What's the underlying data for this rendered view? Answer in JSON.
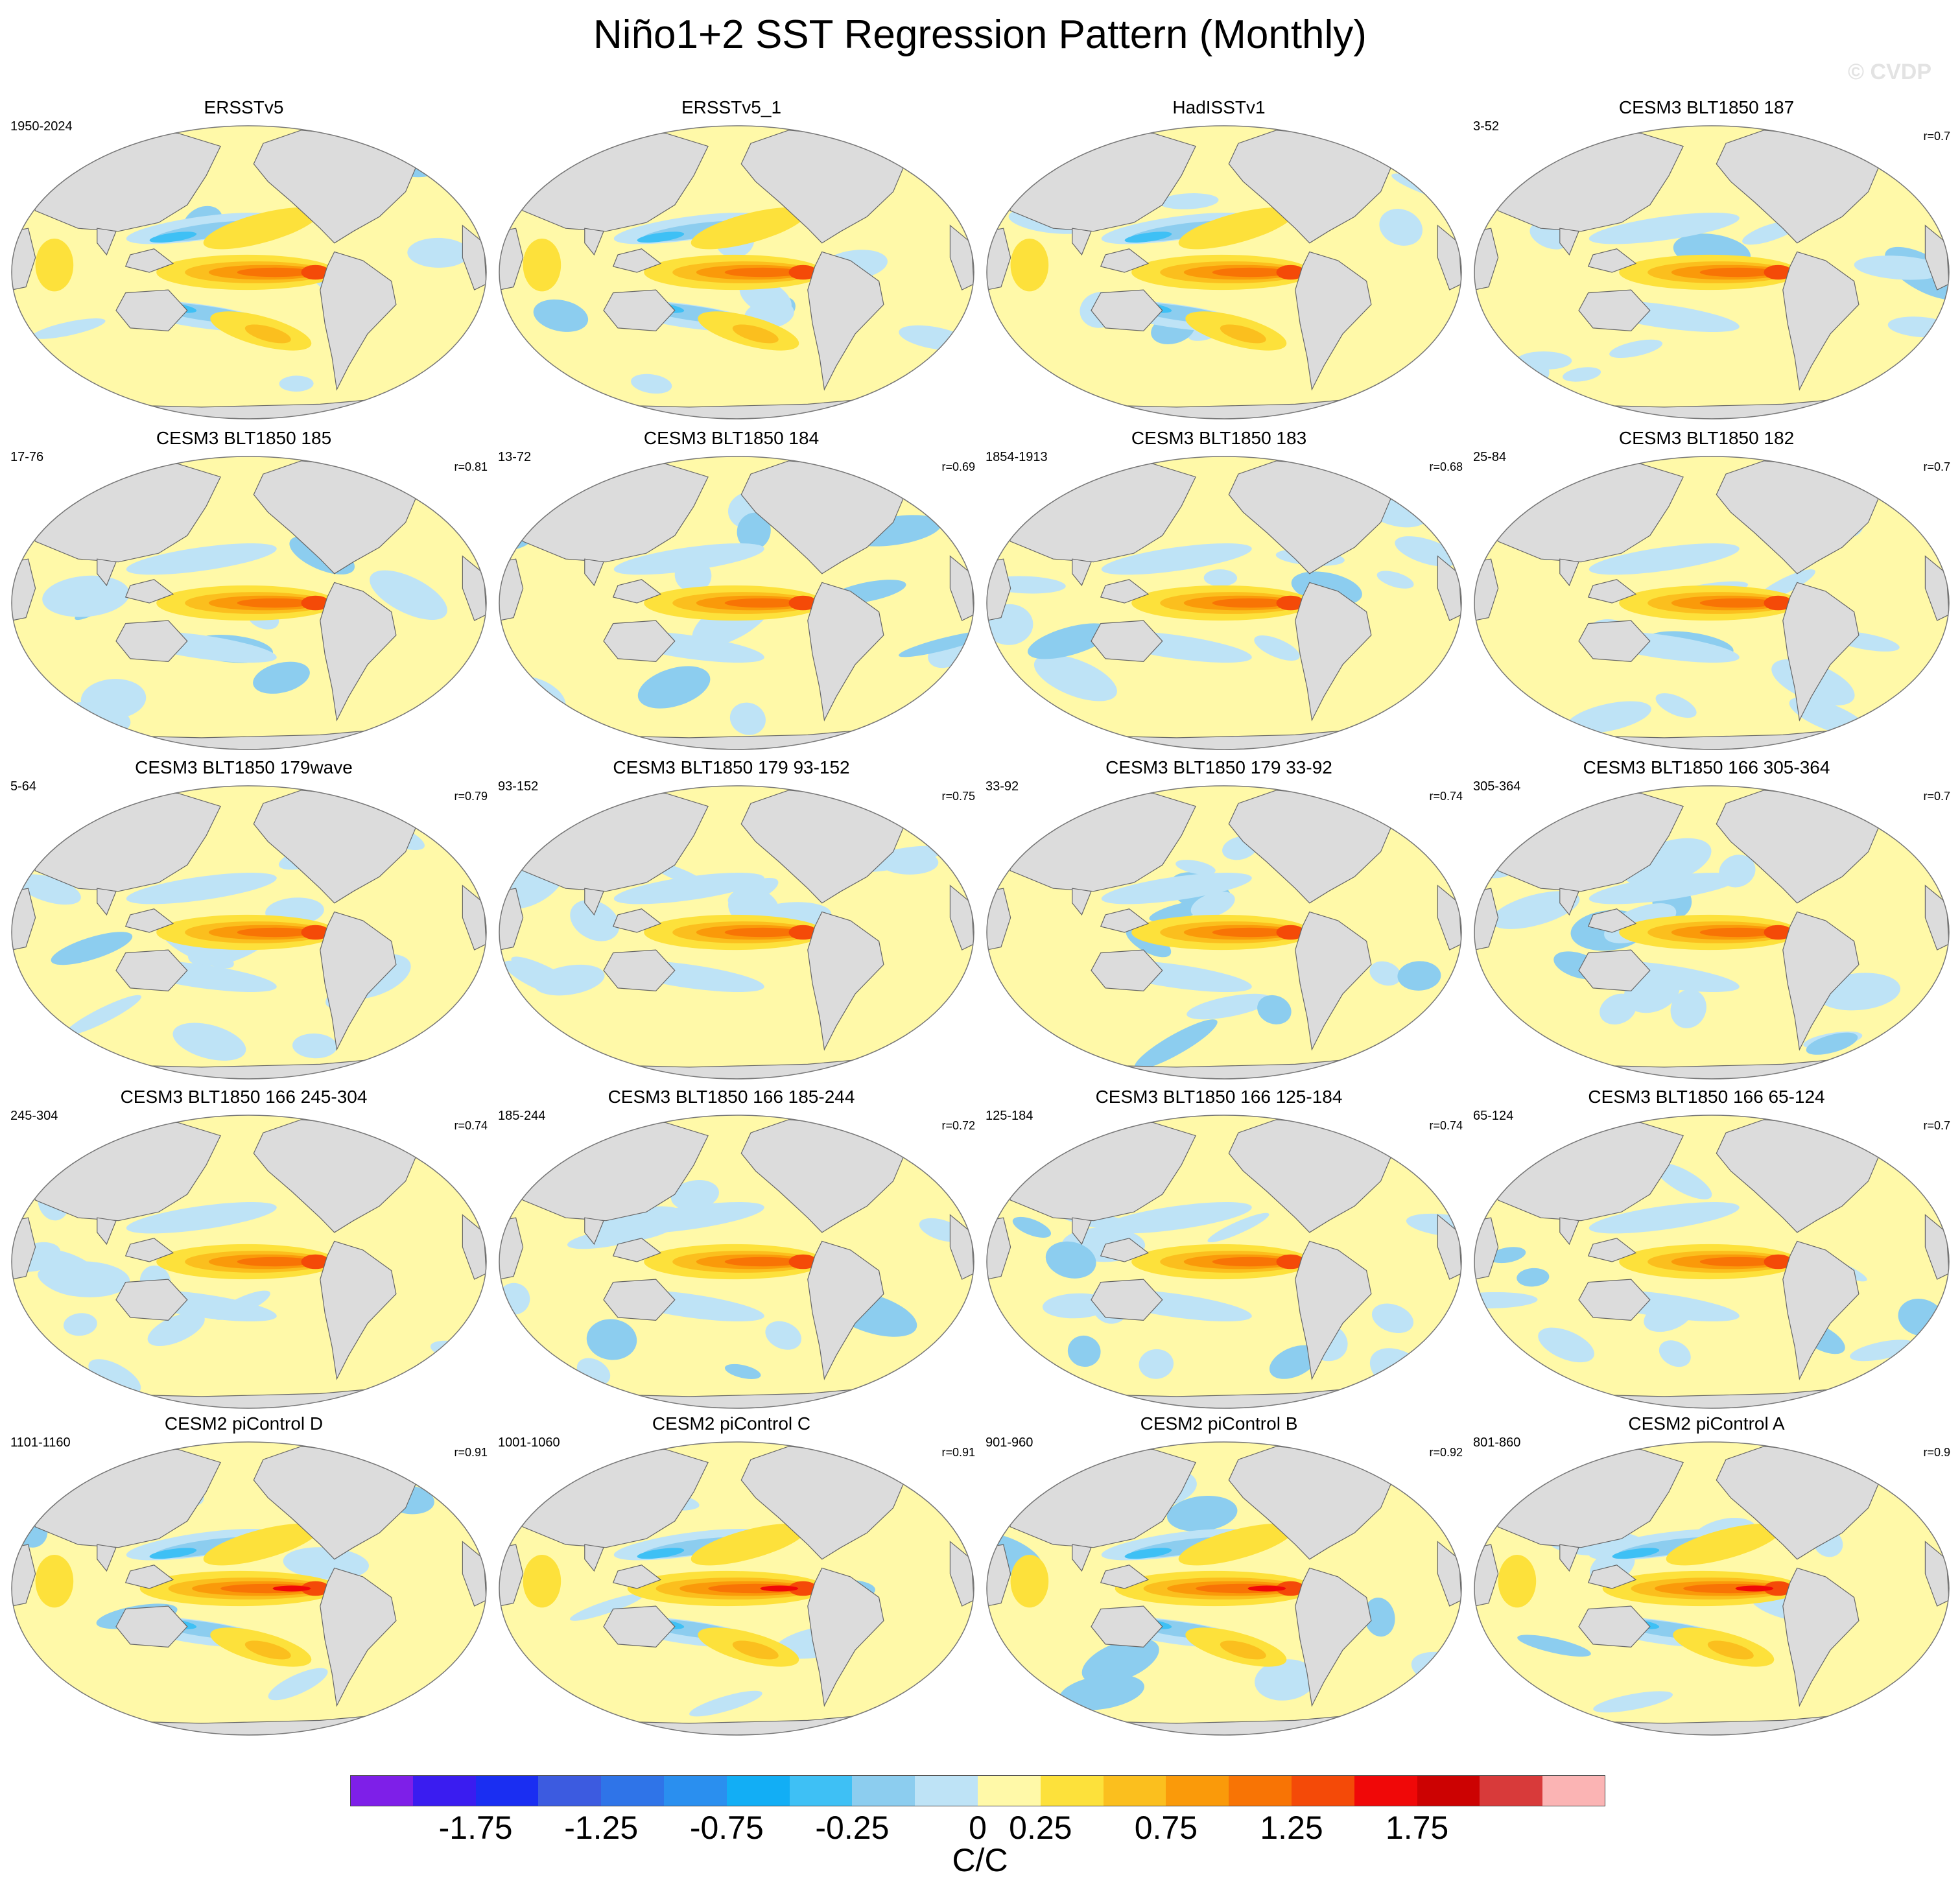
{
  "title": "Niño1+2 SST Regression Pattern (Monthly)",
  "watermark": "© CVDP",
  "chart_data": {
    "type": "heatmap",
    "title": "Niño1+2 SST Regression Pattern (Monthly)",
    "projection": "global map, Pacific-centered",
    "grid": "5 rows x 4 columns of panels",
    "panels": [
      {
        "title": "ERSSTv5",
        "years": "1950-2024",
        "r": "",
        "family": "obs"
      },
      {
        "title": "ERSSTv5_1",
        "years": "",
        "r": "",
        "family": "obs"
      },
      {
        "title": "HadISSTv1",
        "years": "",
        "r": "",
        "family": "obs"
      },
      {
        "title": "CESM3 BLT1850 187",
        "years": "3-52",
        "r": "r=0.7",
        "family": "cesm3"
      },
      {
        "title": "CESM3 BLT1850 185",
        "years": "17-76",
        "r": "r=0.81",
        "family": "cesm3"
      },
      {
        "title": "CESM3 BLT1850 184",
        "years": "13-72",
        "r": "r=0.69",
        "family": "cesm3"
      },
      {
        "title": "CESM3 BLT1850 183",
        "years": "1854-1913",
        "r": "r=0.68",
        "family": "cesm3"
      },
      {
        "title": "CESM3 BLT1850 182",
        "years": "25-84",
        "r": "r=0.7",
        "family": "cesm3"
      },
      {
        "title": "CESM3 BLT1850 179wave",
        "years": "5-64",
        "r": "r=0.79",
        "family": "cesm3"
      },
      {
        "title": "CESM3 BLT1850 179 93-152",
        "years": "93-152",
        "r": "r=0.75",
        "family": "cesm3"
      },
      {
        "title": "CESM3 BLT1850 179 33-92",
        "years": "33-92",
        "r": "r=0.74",
        "family": "cesm3"
      },
      {
        "title": "CESM3 BLT1850 166 305-364",
        "years": "305-364",
        "r": "r=0.7",
        "family": "cesm3"
      },
      {
        "title": "CESM3 BLT1850 166 245-304",
        "years": "245-304",
        "r": "r=0.74",
        "family": "cesm3"
      },
      {
        "title": "CESM3 BLT1850 166 185-244",
        "years": "185-244",
        "r": "r=0.72",
        "family": "cesm3"
      },
      {
        "title": "CESM3 BLT1850 166 125-184",
        "years": "125-184",
        "r": "r=0.74",
        "family": "cesm3"
      },
      {
        "title": "CESM3 BLT1850 166 65-124",
        "years": "65-124",
        "r": "r=0.7",
        "family": "cesm3"
      },
      {
        "title": "CESM2 piControl D",
        "years": "1101-1160",
        "r": "r=0.91",
        "family": "cesm2"
      },
      {
        "title": "CESM2 piControl C",
        "years": "1001-1060",
        "r": "r=0.91",
        "family": "cesm2"
      },
      {
        "title": "CESM2 piControl B",
        "years": "901-960",
        "r": "r=0.92",
        "family": "cesm2"
      },
      {
        "title": "CESM2 piControl A",
        "years": "801-860",
        "r": "r=0.9",
        "family": "cesm2"
      }
    ],
    "colorbar": {
      "unit": "C/C",
      "tick_labels": [
        "-1.75",
        "-1.25",
        "-0.75",
        "-0.25",
        "0",
        "0.25",
        "0.75",
        "1.25",
        "1.75"
      ],
      "colors": [
        "#7e1fe8",
        "#3a1cf0",
        "#1a2ef2",
        "#3c5be0",
        "#2f74e8",
        "#2a8fef",
        "#12aef5",
        "#3ec0f5",
        "#8ccdef",
        "#bee3f6",
        "#fff9a8",
        "#fde13b",
        "#fbbf1e",
        "#fa9a0a",
        "#f87405",
        "#f44a08",
        "#f00808",
        "#cc0202",
        "#d83a3a",
        "#fbb4b4"
      ]
    },
    "palette": {
      "land": "#dcdcdc",
      "ocean_base": "#fff9a8",
      "cool": "#bee3f6",
      "cool2": "#8ccdef",
      "cool3": "#3ec0f5",
      "warm1": "#fde13b",
      "warm2": "#fbbf1e",
      "warm3": "#fa9a0a",
      "warm4": "#f87405",
      "warm5": "#f44a08",
      "warm6": "#f00808"
    }
  }
}
